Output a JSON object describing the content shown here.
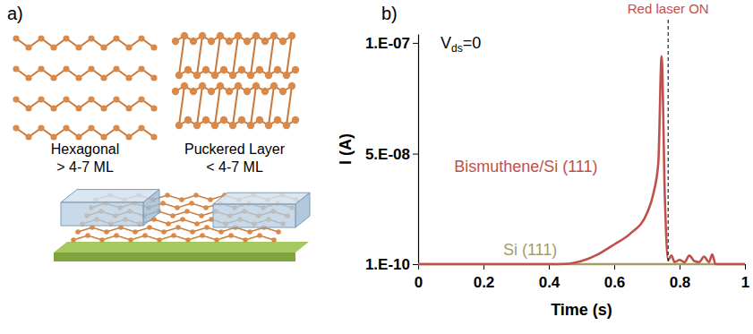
{
  "diagram": {
    "title": "a)",
    "structures": [
      {
        "name": "Hexagonal",
        "thickness": "> 4-7 ML"
      },
      {
        "name": "Puckered Layer",
        "thickness": "< 4-7 ML"
      }
    ]
  },
  "chart_data": {
    "type": "line",
    "title": "b)",
    "x_label": "Time (s)",
    "y_label": "I (A)",
    "xlim": [
      0,
      1
    ],
    "xticks": [
      0,
      0.2,
      0.4,
      0.6,
      0.8,
      1
    ],
    "ylim": [
      1e-10,
      1.04e-07
    ],
    "yticks": [
      {
        "value": 1e-10,
        "label": "1.E-10"
      },
      {
        "value": 5e-08,
        "label": "5.E-08"
      },
      {
        "value": 1e-07,
        "label": "1.E-07"
      }
    ],
    "annotations": [
      {
        "text": "Red laser ON",
        "x": 0.765
      },
      {
        "parts": [
          "V",
          "ds",
          "=0"
        ]
      }
    ],
    "x": [
      0,
      0.1,
      0.2,
      0.3,
      0.4,
      0.45,
      0.5,
      0.55,
      0.6,
      0.65,
      0.7,
      0.72,
      0.735,
      0.745,
      0.755,
      0.765,
      0.775,
      0.785,
      0.8,
      0.815,
      0.83,
      0.845,
      0.86,
      0.875,
      0.89,
      0.9,
      0.91,
      0.925,
      0.95,
      1
    ],
    "series": [
      {
        "name": "Si (111)",
        "color": "#a39e66",
        "values": [
          1e-10,
          1e-10,
          1e-10,
          1e-10,
          1e-10,
          1e-10,
          1e-10,
          1e-10,
          1e-10,
          1e-10,
          1e-10,
          1e-10,
          1e-10,
          1e-10,
          1e-10,
          1e-10,
          1e-10,
          1e-10,
          1e-10,
          1e-10,
          1e-10,
          1e-10,
          1e-10,
          1e-10,
          1e-10,
          1e-10,
          1e-10,
          1e-10,
          1e-10,
          1e-10
        ]
      },
      {
        "name": "Bismuthene/Si (111)",
        "color": "#c0504d",
        "values": [
          1e-10,
          1e-10,
          1e-10,
          1e-10,
          1e-10,
          2e-10,
          1.5e-09,
          4.5e-09,
          9e-09,
          1.4e-08,
          2.3e-08,
          3.2e-08,
          4.6e-08,
          9.4e-08,
          3e-08,
          2e-09,
          4e-09,
          1e-09,
          2e-09,
          1e-09,
          4e-09,
          1.5e-09,
          1e-09,
          3.5e-09,
          1e-09,
          4.5e-09,
          1e-10,
          1e-10,
          1e-10,
          1e-10
        ]
      }
    ]
  }
}
